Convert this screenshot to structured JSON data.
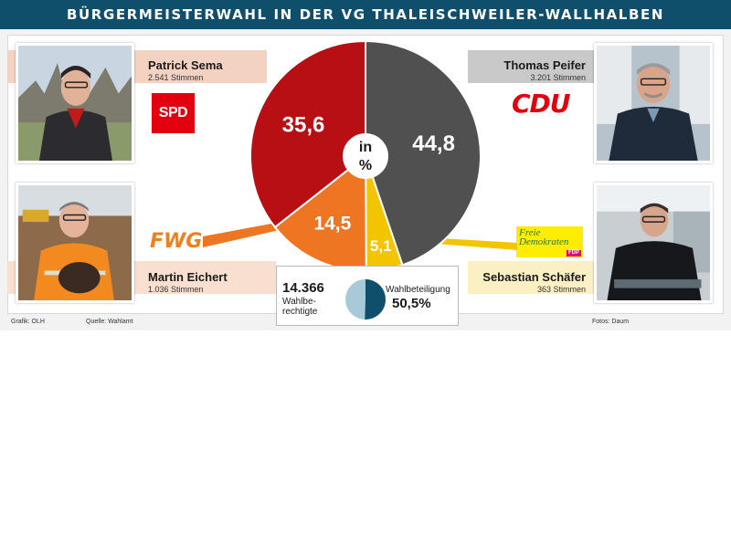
{
  "title": "BÜRGERMEISTERWAHL IN DER VG THALEISCHWEILER-WALLHALBEN",
  "candidates": {
    "sema": {
      "name": "Patrick Sema",
      "votes": "2.541 Stimmen",
      "party": "SPD"
    },
    "peifer": {
      "name": "Thomas Peifer",
      "votes": "3.201 Stimmen",
      "party": "CDU"
    },
    "eichert": {
      "name": "Martin Eichert",
      "votes": "1.036 Stimmen",
      "party": "FWG"
    },
    "schaefer": {
      "name": "Sebastian Schäfer",
      "votes": "363 Stimmen",
      "party_line1": "Freie",
      "party_line2": "Demokraten",
      "party_tag": "FDP"
    }
  },
  "chart_data": {
    "type": "pie",
    "center_label": [
      "in",
      "%"
    ],
    "slices": [
      {
        "label": "44,8",
        "value": 44.8,
        "color": "#505050",
        "party": "CDU"
      },
      {
        "label": "5,1",
        "value": 5.1,
        "color": "#f3c500",
        "party": "FDP"
      },
      {
        "label": "14,5",
        "value": 14.5,
        "color": "#ee7623",
        "party": "FWG"
      },
      {
        "label": "35,6",
        "value": 35.6,
        "color": "#b80f14",
        "party": "SPD"
      }
    ],
    "turnout": {
      "eligible_value": "14.366",
      "eligible_label": "Wahlbe-rechtigte",
      "eligible_label_line1": "Wahlbe-",
      "eligible_label_line2": "rechtigte",
      "label": "Wahlbeteiligung",
      "value_text": "50,5%",
      "value": 50.5,
      "color_voted": "#0f4f6b",
      "color_rest": "#a8c9d8"
    }
  },
  "credits": {
    "graphic": "Grafik: OLH",
    "source": "Quelle: Wahlamt",
    "photos": "Fotos: Daum"
  },
  "colors": {
    "title_bg": "#0f4f6b",
    "spd": "#e3000f",
    "cdu": "#e3000f",
    "fwg": "#f07f1f",
    "fdp_yellow": "#ffed00",
    "fdp_magenta": "#e5007d",
    "fdp_text": "#1f7a33"
  }
}
